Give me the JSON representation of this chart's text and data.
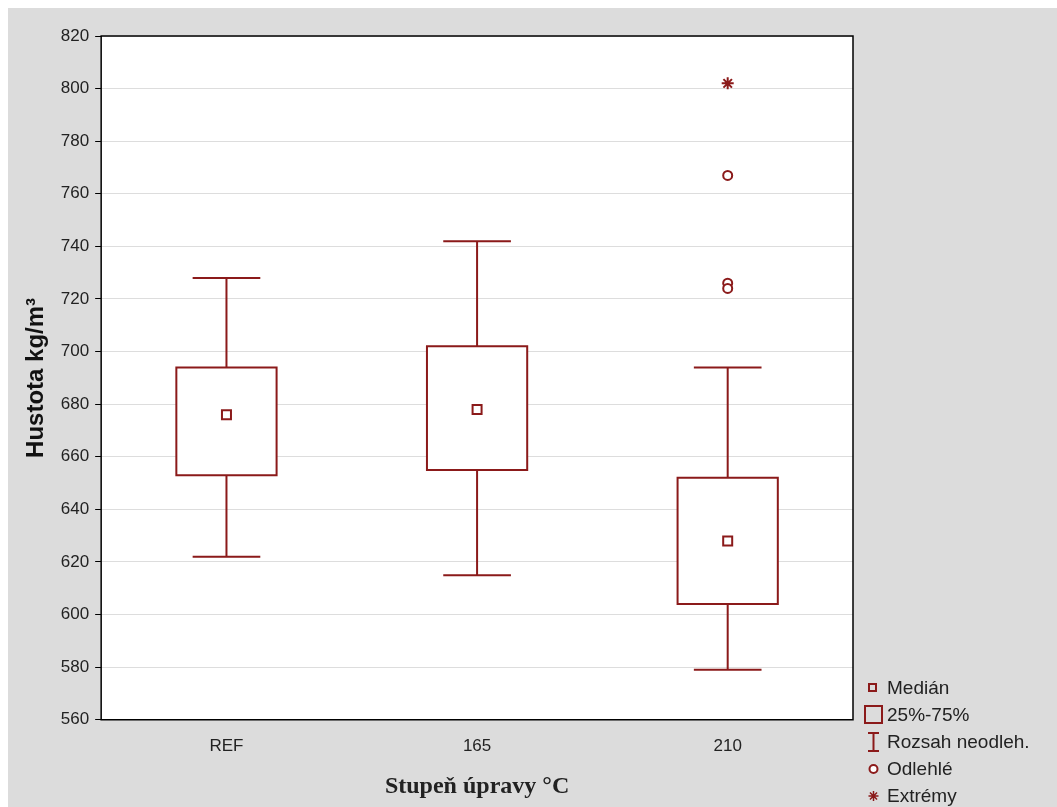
{
  "chart_data": {
    "type": "box",
    "xlabel": "Stupeň úpravy °C",
    "ylabel": "Hustota kg/m³",
    "categories": [
      "REF",
      "165",
      "210"
    ],
    "color": "#8b1a1a",
    "marker": "square",
    "boxes": [
      {
        "low": 622,
        "q1": 653,
        "median": 676,
        "q3": 694,
        "high": 728
      },
      {
        "low": 615,
        "q1": 655,
        "median": 678,
        "q3": 702,
        "high": 742
      },
      {
        "low": 579,
        "q1": 604,
        "median": 628,
        "q3": 652,
        "high": 694
      }
    ],
    "series": [
      {
        "type": "scatter",
        "name": "Odlehlé",
        "color": "#8b1a1a",
        "marker": "circle",
        "x": [
          "210",
          "210",
          "210"
        ],
        "values": [
          767,
          726,
          724
        ]
      },
      {
        "type": "scatter",
        "name": "Extrémy",
        "color": "#8b1a1a",
        "marker": "cross",
        "x": [
          "210"
        ],
        "values": [
          802
        ]
      }
    ],
    "annotations": [
      "Medián",
      "25%-75%",
      "Rozsah neodleh."
    ],
    "ylim": [
      560,
      820
    ],
    "yticks": [
      560,
      580,
      600,
      620,
      640,
      660,
      680,
      700,
      720,
      740,
      760,
      780,
      800,
      820
    ],
    "grid": "y",
    "legend": "bottom right"
  }
}
